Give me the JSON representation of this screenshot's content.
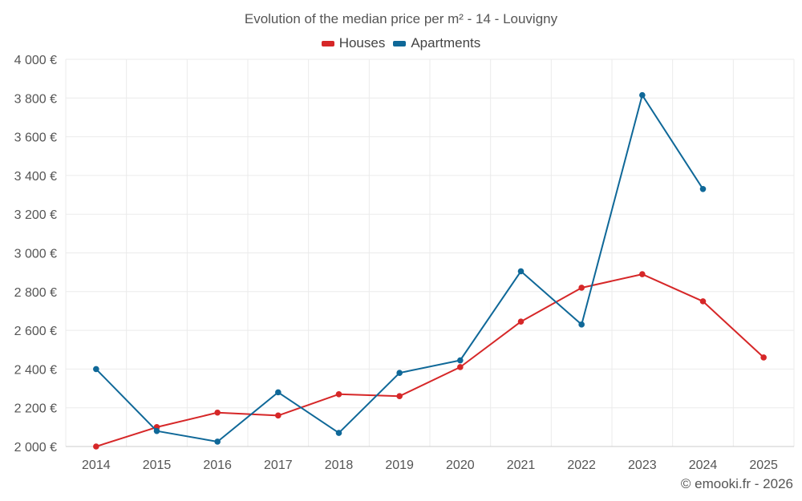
{
  "chart_data": {
    "type": "line",
    "title": "Evolution of the median price per m² - 14 - Louvigny",
    "categories": [
      "2014",
      "2015",
      "2016",
      "2017",
      "2018",
      "2019",
      "2020",
      "2021",
      "2022",
      "2023",
      "2024",
      "2025"
    ],
    "series": [
      {
        "name": "Houses",
        "color": "#d62728",
        "values": [
          2000,
          2100,
          2175,
          2160,
          2270,
          2260,
          2410,
          2645,
          2820,
          2890,
          2750,
          2460
        ]
      },
      {
        "name": "Apartments",
        "color": "#0f6898",
        "values": [
          2400,
          2080,
          2025,
          2280,
          2070,
          2380,
          2445,
          2905,
          2630,
          3815,
          3330,
          null
        ]
      }
    ],
    "ylim": [
      2000,
      4000
    ],
    "yticks": [
      2000,
      2200,
      2400,
      2600,
      2800,
      3000,
      3200,
      3400,
      3600,
      3800,
      4000
    ],
    "ytick_labels": [
      "2 000 €",
      "2 200 €",
      "2 400 €",
      "2 600 €",
      "2 800 €",
      "3 000 €",
      "3 200 €",
      "3 400 €",
      "3 600 €",
      "3 800 €",
      "4 000 €"
    ],
    "xlabel": "",
    "ylabel": "",
    "grid": true,
    "legend_position": "top-center"
  },
  "credit": "© emooki.fr - 2026"
}
